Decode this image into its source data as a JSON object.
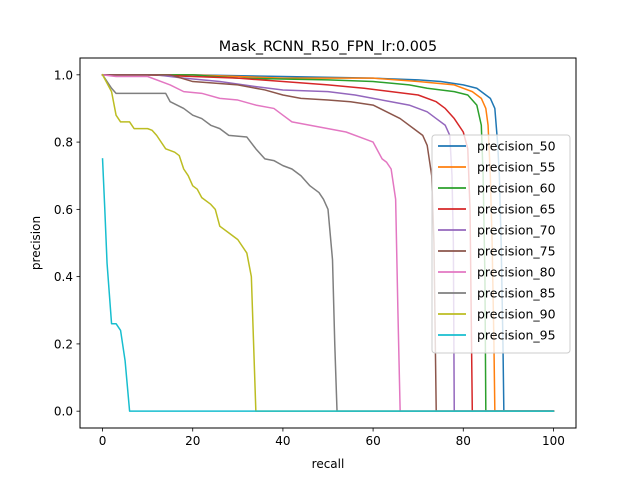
{
  "chart_data": {
    "type": "line",
    "title": "Mask_RCNN_R50_FPN_lr:0.005",
    "xlabel": "recall",
    "ylabel": "precision",
    "xlim": [
      -5,
      105
    ],
    "ylim": [
      -0.05,
      1.05
    ],
    "xticks": [
      0,
      20,
      40,
      60,
      80,
      100
    ],
    "yticks": [
      0.0,
      0.2,
      0.4,
      0.6,
      0.8,
      1.0
    ],
    "xtick_labels": [
      "0",
      "20",
      "40",
      "60",
      "80",
      "100"
    ],
    "ytick_labels": [
      "0.0",
      "0.2",
      "0.4",
      "0.6",
      "0.8",
      "1.0"
    ],
    "grid": false,
    "legend_position": "center-right",
    "series": [
      {
        "name": "precision_50",
        "color": "#1f77b4",
        "points": [
          [
            0,
            1.0
          ],
          [
            20,
            1.0
          ],
          [
            40,
            0.995
          ],
          [
            60,
            0.99
          ],
          [
            70,
            0.985
          ],
          [
            75,
            0.98
          ],
          [
            80,
            0.97
          ],
          [
            83,
            0.96
          ],
          [
            85,
            0.94
          ],
          [
            86,
            0.93
          ],
          [
            87,
            0.9
          ],
          [
            87.6,
            0.8
          ],
          [
            88,
            0.7
          ],
          [
            88.4,
            0.5
          ],
          [
            88.8,
            0.2
          ],
          [
            89,
            0.0
          ],
          [
            100,
            0.0
          ]
        ]
      },
      {
        "name": "precision_55",
        "color": "#ff7f0e",
        "points": [
          [
            0,
            1.0
          ],
          [
            20,
            1.0
          ],
          [
            40,
            0.99
          ],
          [
            60,
            0.99
          ],
          [
            70,
            0.98
          ],
          [
            78,
            0.97
          ],
          [
            82,
            0.95
          ],
          [
            84,
            0.93
          ],
          [
            85,
            0.9
          ],
          [
            85.5,
            0.85
          ],
          [
            86,
            0.7
          ],
          [
            86.4,
            0.5
          ],
          [
            86.8,
            0.2
          ],
          [
            87,
            0.0
          ],
          [
            100,
            0.0
          ]
        ]
      },
      {
        "name": "precision_60",
        "color": "#2ca02c",
        "points": [
          [
            0,
            1.0
          ],
          [
            20,
            1.0
          ],
          [
            30,
            0.99
          ],
          [
            50,
            0.985
          ],
          [
            60,
            0.98
          ],
          [
            68,
            0.97
          ],
          [
            72,
            0.96
          ],
          [
            78,
            0.95
          ],
          [
            81,
            0.94
          ],
          [
            83,
            0.91
          ],
          [
            84,
            0.85
          ],
          [
            84.4,
            0.7
          ],
          [
            84.8,
            0.4
          ],
          [
            85,
            0.0
          ],
          [
            100,
            0.0
          ]
        ]
      },
      {
        "name": "precision_65",
        "color": "#d62728",
        "points": [
          [
            0,
            1.0
          ],
          [
            10,
            1.0
          ],
          [
            20,
            0.995
          ],
          [
            30,
            0.99
          ],
          [
            40,
            0.98
          ],
          [
            50,
            0.97
          ],
          [
            58,
            0.96
          ],
          [
            64,
            0.95
          ],
          [
            70,
            0.94
          ],
          [
            74,
            0.92
          ],
          [
            76,
            0.9
          ],
          [
            78,
            0.87
          ],
          [
            80,
            0.83
          ],
          [
            81,
            0.78
          ],
          [
            81.5,
            0.6
          ],
          [
            82,
            0.0
          ],
          [
            100,
            0.0
          ]
        ]
      },
      {
        "name": "precision_70",
        "color": "#9467bd",
        "points": [
          [
            0,
            1.0
          ],
          [
            12,
            1.0
          ],
          [
            18,
            0.99
          ],
          [
            26,
            0.98
          ],
          [
            34,
            0.965
          ],
          [
            40,
            0.955
          ],
          [
            50,
            0.95
          ],
          [
            56,
            0.94
          ],
          [
            60,
            0.93
          ],
          [
            64,
            0.92
          ],
          [
            68,
            0.91
          ],
          [
            72,
            0.89
          ],
          [
            74,
            0.87
          ],
          [
            76,
            0.85
          ],
          [
            77,
            0.82
          ],
          [
            77.5,
            0.7
          ],
          [
            77.8,
            0.5
          ],
          [
            78,
            0.0
          ],
          [
            100,
            0.0
          ]
        ]
      },
      {
        "name": "precision_75",
        "color": "#8c564b",
        "points": [
          [
            0,
            1.0
          ],
          [
            15,
            1.0
          ],
          [
            20,
            0.98
          ],
          [
            30,
            0.97
          ],
          [
            36,
            0.955
          ],
          [
            40,
            0.94
          ],
          [
            44,
            0.93
          ],
          [
            50,
            0.925
          ],
          [
            55,
            0.92
          ],
          [
            60,
            0.91
          ],
          [
            63,
            0.89
          ],
          [
            66,
            0.87
          ],
          [
            69,
            0.84
          ],
          [
            71,
            0.82
          ],
          [
            72,
            0.79
          ],
          [
            73,
            0.7
          ],
          [
            73.5,
            0.5
          ],
          [
            74,
            0.0
          ],
          [
            100,
            0.0
          ]
        ]
      },
      {
        "name": "precision_80",
        "color": "#e377c2",
        "points": [
          [
            0,
            1.0
          ],
          [
            3,
            0.995
          ],
          [
            10,
            0.995
          ],
          [
            15,
            0.97
          ],
          [
            18,
            0.95
          ],
          [
            22,
            0.945
          ],
          [
            26,
            0.93
          ],
          [
            30,
            0.925
          ],
          [
            34,
            0.91
          ],
          [
            38,
            0.9
          ],
          [
            40,
            0.88
          ],
          [
            42,
            0.86
          ],
          [
            46,
            0.85
          ],
          [
            50,
            0.84
          ],
          [
            54,
            0.83
          ],
          [
            58,
            0.81
          ],
          [
            60,
            0.8
          ],
          [
            62,
            0.75
          ],
          [
            63,
            0.74
          ],
          [
            64,
            0.72
          ],
          [
            65,
            0.63
          ],
          [
            65.5,
            0.3
          ],
          [
            66,
            0.0
          ],
          [
            100,
            0.0
          ]
        ]
      },
      {
        "name": "precision_85",
        "color": "#7f7f7f",
        "points": [
          [
            0,
            1.0
          ],
          [
            2,
            0.96
          ],
          [
            3,
            0.945
          ],
          [
            14,
            0.945
          ],
          [
            15,
            0.92
          ],
          [
            18,
            0.9
          ],
          [
            20,
            0.88
          ],
          [
            22,
            0.87
          ],
          [
            24,
            0.85
          ],
          [
            26,
            0.84
          ],
          [
            28,
            0.82
          ],
          [
            32,
            0.815
          ],
          [
            34,
            0.78
          ],
          [
            36,
            0.75
          ],
          [
            38,
            0.745
          ],
          [
            40,
            0.73
          ],
          [
            42,
            0.72
          ],
          [
            44,
            0.7
          ],
          [
            46,
            0.67
          ],
          [
            48,
            0.65
          ],
          [
            49,
            0.63
          ],
          [
            50,
            0.6
          ],
          [
            51,
            0.45
          ],
          [
            51.5,
            0.2
          ],
          [
            52,
            0.0
          ],
          [
            100,
            0.0
          ]
        ]
      },
      {
        "name": "precision_90",
        "color": "#bcbd22",
        "points": [
          [
            0,
            1.0
          ],
          [
            2,
            0.95
          ],
          [
            3,
            0.88
          ],
          [
            4,
            0.86
          ],
          [
            6,
            0.86
          ],
          [
            7,
            0.84
          ],
          [
            10,
            0.84
          ],
          [
            11,
            0.835
          ],
          [
            12,
            0.82
          ],
          [
            14,
            0.78
          ],
          [
            16,
            0.77
          ],
          [
            17,
            0.76
          ],
          [
            18,
            0.72
          ],
          [
            19,
            0.7
          ],
          [
            20,
            0.67
          ],
          [
            21,
            0.66
          ],
          [
            22,
            0.635
          ],
          [
            24,
            0.615
          ],
          [
            25,
            0.6
          ],
          [
            26,
            0.55
          ],
          [
            28,
            0.53
          ],
          [
            30,
            0.51
          ],
          [
            32,
            0.47
          ],
          [
            33,
            0.4
          ],
          [
            33.5,
            0.2
          ],
          [
            34,
            0.0
          ],
          [
            100,
            0.0
          ]
        ]
      },
      {
        "name": "precision_95",
        "color": "#17becf",
        "points": [
          [
            0,
            0.75
          ],
          [
            0.5,
            0.6
          ],
          [
            1,
            0.44
          ],
          [
            2,
            0.26
          ],
          [
            3,
            0.26
          ],
          [
            4,
            0.24
          ],
          [
            5,
            0.15
          ],
          [
            6,
            0.0
          ],
          [
            100,
            0.0
          ]
        ]
      }
    ]
  }
}
